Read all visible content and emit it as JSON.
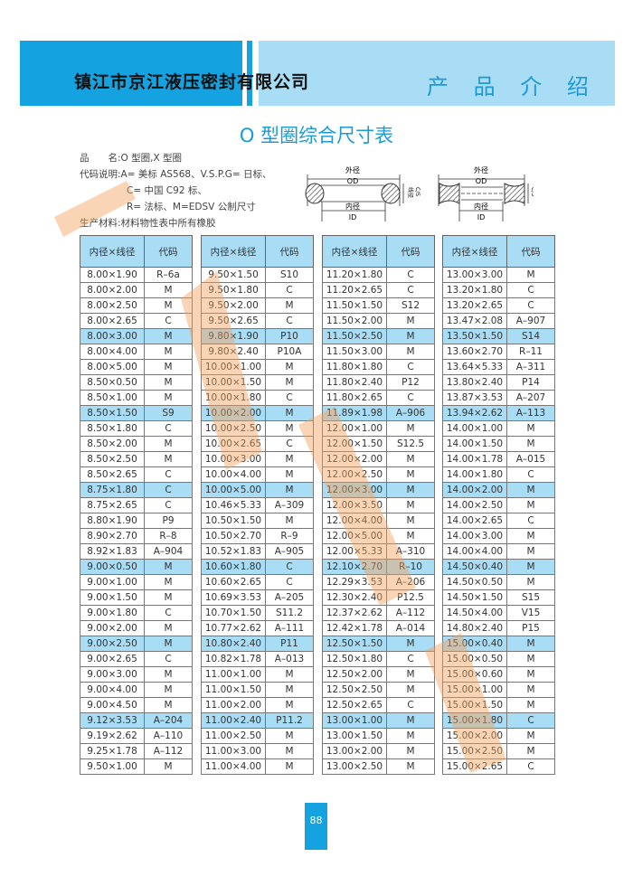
{
  "header": {
    "company": "镇江市京江液压密封有限公司",
    "section": "产 品 介 绍",
    "accent": "#14a3e0",
    "light": "#a9dcf5"
  },
  "title": "O 型圈综合尺寸表",
  "info": {
    "line1": "品　　名:O 型圈,X 型圈",
    "line2": "代码说明:A= 美标 AS568、V.S.P.G= 日标、",
    "line3": "C= 中国 C92 标、",
    "line4": "R= 法标、M=EDSV 公制尺寸",
    "line5": "生产材料:材料物性表中所有橡胶"
  },
  "diagram": {
    "od_cn": "外径",
    "od": "OD",
    "id_cn": "内径",
    "id": "ID",
    "cs_cn": "线径",
    "cs": "C/S"
  },
  "table_headers": [
    "内径×线径",
    "代码"
  ],
  "tables": [
    [
      [
        "8.00×1.90",
        "R–6a"
      ],
      [
        "8.00×2.00",
        "M"
      ],
      [
        "8.00×2.50",
        "M"
      ],
      [
        "8.00×2.65",
        "C"
      ],
      [
        "8.00×3.00",
        "M"
      ],
      [
        "8.00×4.00",
        "M"
      ],
      [
        "8.00×5.00",
        "M"
      ],
      [
        "8.50×0.50",
        "M"
      ],
      [
        "8.50×1.00",
        "M"
      ],
      [
        "8.50×1.50",
        "S9"
      ],
      [
        "8.50×1.80",
        "C"
      ],
      [
        "8.50×2.00",
        "M"
      ],
      [
        "8.50×2.50",
        "M"
      ],
      [
        "8.50×2.65",
        "C"
      ],
      [
        "8.75×1.80",
        "C"
      ],
      [
        "8.75×2.65",
        "C"
      ],
      [
        "8.80×1.90",
        "P9"
      ],
      [
        "8.90×2.70",
        "R–8"
      ],
      [
        "8.92×1.83",
        "A–904"
      ],
      [
        "9.00×0.50",
        "M"
      ],
      [
        "9.00×1.00",
        "M"
      ],
      [
        "9.00×1.50",
        "M"
      ],
      [
        "9.00×1.80",
        "C"
      ],
      [
        "9.00×2.00",
        "M"
      ],
      [
        "9.00×2.50",
        "M"
      ],
      [
        "9.00×2.65",
        "C"
      ],
      [
        "9.00×3.00",
        "M"
      ],
      [
        "9.00×4.00",
        "M"
      ],
      [
        "9.00×4.50",
        "M"
      ],
      [
        "9.12×3.53",
        "A–204"
      ],
      [
        "9.19×2.62",
        "A–110"
      ],
      [
        "9.25×1.78",
        "A–112"
      ],
      [
        "9.50×1.00",
        "M"
      ]
    ],
    [
      [
        "9.50×1.50",
        "S10"
      ],
      [
        "9.50×1.80",
        "C"
      ],
      [
        "9.50×2.00",
        "M"
      ],
      [
        "9.50×2.65",
        "C"
      ],
      [
        "9.80×1.90",
        "P10"
      ],
      [
        "9.80×2.40",
        "P10A"
      ],
      [
        "10.00×1.00",
        "M"
      ],
      [
        "10.00×1.50",
        "M"
      ],
      [
        "10.00×1.80",
        "C"
      ],
      [
        "10.00×2.00",
        "M"
      ],
      [
        "10.00×2.50",
        "M"
      ],
      [
        "10.00×2.65",
        "C"
      ],
      [
        "10.00×3.00",
        "M"
      ],
      [
        "10.00×4.00",
        "M"
      ],
      [
        "10.00×5.00",
        "M"
      ],
      [
        "10.46×5.33",
        "A–309"
      ],
      [
        "10.50×1.50",
        "M"
      ],
      [
        "10.50×2.70",
        "R–9"
      ],
      [
        "10.52×1.83",
        "A–905"
      ],
      [
        "10.60×1.80",
        "C"
      ],
      [
        "10.60×2.65",
        "C"
      ],
      [
        "10.69×3.53",
        "A–205"
      ],
      [
        "10.70×1.50",
        "S11.2"
      ],
      [
        "10.77×2.62",
        "A–111"
      ],
      [
        "10.80×2.40",
        "P11"
      ],
      [
        "10.82×1.78",
        "A–013"
      ],
      [
        "11.00×1.00",
        "M"
      ],
      [
        "11.00×1.50",
        "M"
      ],
      [
        "11.00×2.00",
        "M"
      ],
      [
        "11.00×2.40",
        "P11.2"
      ],
      [
        "11.00×2.50",
        "M"
      ],
      [
        "11.00×3.00",
        "M"
      ],
      [
        "11.00×4.00",
        "M"
      ]
    ],
    [
      [
        "11.20×1.80",
        "C"
      ],
      [
        "11.20×2.65",
        "C"
      ],
      [
        "11.50×1.50",
        "S12"
      ],
      [
        "11.50×2.00",
        "M"
      ],
      [
        "11.50×2.50",
        "M"
      ],
      [
        "11.50×3.00",
        "M"
      ],
      [
        "11.80×1.80",
        "C"
      ],
      [
        "11.80×2.40",
        "P12"
      ],
      [
        "11.80×2.65",
        "C"
      ],
      [
        "11.89×1.98",
        "A–906"
      ],
      [
        "12.00×1.00",
        "M"
      ],
      [
        "12.00×1.50",
        "S12.5"
      ],
      [
        "12.00×2.00",
        "M"
      ],
      [
        "12.00×2.50",
        "M"
      ],
      [
        "12.00×3.00",
        "M"
      ],
      [
        "12.00×3.50",
        "M"
      ],
      [
        "12.00×4.00",
        "M"
      ],
      [
        "12.00×5.00",
        "M"
      ],
      [
        "12.00×5.33",
        "A–310"
      ],
      [
        "12.10×2.70",
        "R–10"
      ],
      [
        "12.29×3.53",
        "A–206"
      ],
      [
        "12.30×2.40",
        "P12.5"
      ],
      [
        "12.37×2.62",
        "A–112"
      ],
      [
        "12.42×1.78",
        "A–014"
      ],
      [
        "12.50×1.50",
        "M"
      ],
      [
        "12.50×1.80",
        "C"
      ],
      [
        "12.50×2.00",
        "M"
      ],
      [
        "12.50×2.50",
        "M"
      ],
      [
        "12.50×2.65",
        "C"
      ],
      [
        "13.00×1.00",
        "M"
      ],
      [
        "13.00×1.50",
        "M"
      ],
      [
        "13.00×2.00",
        "M"
      ],
      [
        "13.00×2.50",
        "M"
      ]
    ],
    [
      [
        "13.00×3.00",
        "M"
      ],
      [
        "13.20×1.80",
        "C"
      ],
      [
        "13.20×2.65",
        "C"
      ],
      [
        "13.47×2.08",
        "A–907"
      ],
      [
        "13.50×1.50",
        "S14"
      ],
      [
        "13.60×2.70",
        "R–11"
      ],
      [
        "13.64×5.33",
        "A–311"
      ],
      [
        "13.80×2.40",
        "P14"
      ],
      [
        "13.87×3.53",
        "A–207"
      ],
      [
        "13.94×2.62",
        "A–113"
      ],
      [
        "14.00×1.00",
        "M"
      ],
      [
        "14.00×1.50",
        "M"
      ],
      [
        "14.00×1.78",
        "A–015"
      ],
      [
        "14.00×1.80",
        "C"
      ],
      [
        "14.00×2.00",
        "M"
      ],
      [
        "14.00×2.50",
        "M"
      ],
      [
        "14.00×2.65",
        "C"
      ],
      [
        "14.00×3.00",
        "M"
      ],
      [
        "14.00×4.00",
        "M"
      ],
      [
        "14.50×0.40",
        "M"
      ],
      [
        "14.50×0.50",
        "M"
      ],
      [
        "14.50×1.50",
        "S15"
      ],
      [
        "14.50×4.00",
        "V15"
      ],
      [
        "14.80×2.40",
        "P15"
      ],
      [
        "15.00×0.40",
        "M"
      ],
      [
        "15.00×0.50",
        "M"
      ],
      [
        "15.00×0.60",
        "M"
      ],
      [
        "15.00×1.00",
        "M"
      ],
      [
        "15.00×1.50",
        "M"
      ],
      [
        "15.00×1.80",
        "C"
      ],
      [
        "15.00×2.00",
        "M"
      ],
      [
        "15.00×2.50",
        "M"
      ],
      [
        "15.00×2.65",
        "C"
      ]
    ]
  ],
  "page_number": "88"
}
